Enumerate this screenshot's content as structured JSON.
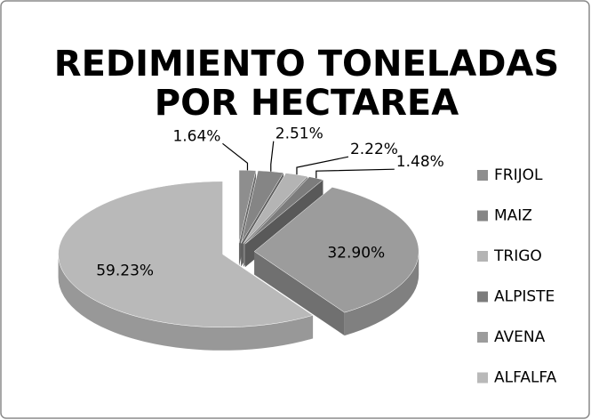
{
  "chart_data": {
    "type": "pie",
    "title": "REDIMIENTO TONELADAS POR HECTAREA",
    "categories": [
      "FRIJOL",
      "MAIZ",
      "TRIGO",
      "ALPISTE",
      "AVENA",
      "ALFALFA"
    ],
    "values": [
      1.64,
      2.51,
      2.22,
      1.48,
      32.9,
      59.23
    ],
    "value_labels": [
      "1.64%",
      "2.51%",
      "2.22%",
      "1.48%",
      "32.90%",
      "59.23%"
    ],
    "colors": [
      "#8e8e8e",
      "#858585",
      "#b4b4b4",
      "#7c7c7c",
      "#9c9c9c",
      "#b9b9b9"
    ],
    "legend": "right"
  }
}
